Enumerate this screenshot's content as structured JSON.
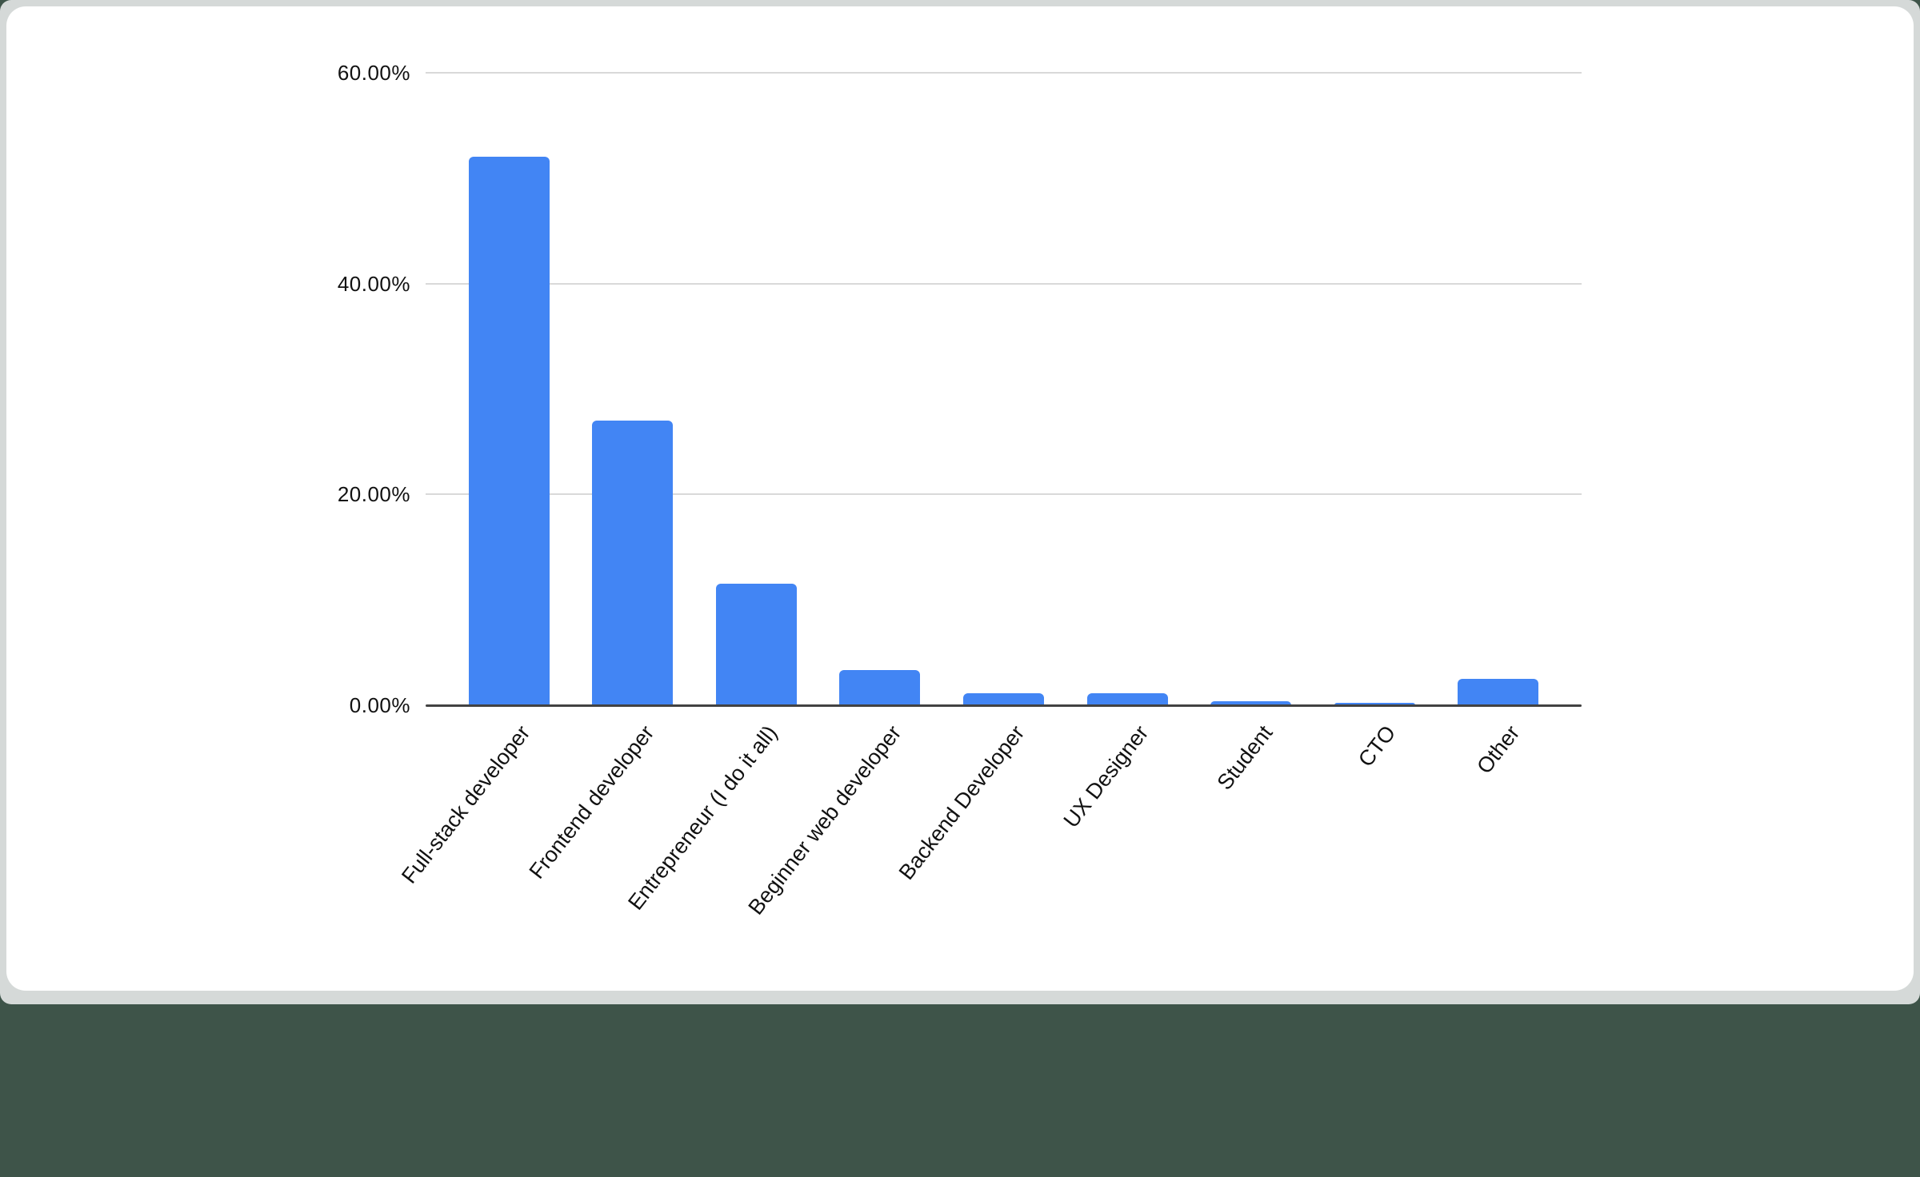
{
  "chart_data": {
    "type": "bar",
    "title": "",
    "xlabel": "",
    "ylabel": "",
    "categories": [
      "Full-stack developer",
      "Frontend developer",
      "Entrepreneur (I do it all)",
      "Beginner web developer",
      "Backend Developer",
      "UX Designer",
      "Student",
      "CTO",
      "Other"
    ],
    "values": [
      52.0,
      27.0,
      11.5,
      3.3,
      1.1,
      1.1,
      0.4,
      0.25,
      2.5
    ],
    "value_unit": "percent",
    "ylim": [
      0,
      60
    ],
    "yticks": [
      {
        "value": 0,
        "label": "0.00%"
      },
      {
        "value": 20,
        "label": "20.00%"
      },
      {
        "value": 40,
        "label": "40.00%"
      },
      {
        "value": 60,
        "label": "60.00%"
      }
    ],
    "grid": "horizontal",
    "legend": "none",
    "x_label_rotation_deg": -52
  },
  "colors": {
    "bar": "#4285f4",
    "gridline": "#d9d9d9",
    "axis_line": "#424242",
    "text": "#111111",
    "card_bg": "#ffffff",
    "panel_bg": "#d5d9d8",
    "page_bg": "#3e5449"
  }
}
